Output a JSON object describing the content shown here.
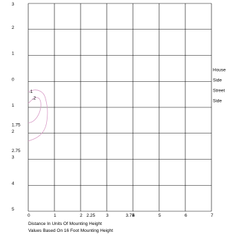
{
  "chart_data": {
    "type": "line",
    "title": "",
    "xlabel": "Distance In Units Of Mounting Height",
    "subtitle": "Values Based On 16 Foot Mounting Height",
    "xlim": [
      0,
      7
    ],
    "ylim": [
      -3,
      5
    ],
    "y_inverted": true,
    "grid": true,
    "x_major_ticks": [
      0,
      1,
      2,
      3,
      4,
      5,
      6,
      7
    ],
    "y_major_ticks": [
      -3,
      -2,
      -1,
      0,
      1,
      2,
      3,
      4,
      5
    ],
    "x_tick_labels": [
      {
        "value": 0,
        "label": "0"
      },
      {
        "value": 1,
        "label": "1"
      },
      {
        "value": 2,
        "label": "2"
      },
      {
        "value": 2.25,
        "label": "2.25"
      },
      {
        "value": 3,
        "label": "3"
      },
      {
        "value": 3.75,
        "label": "3.75"
      },
      {
        "value": 4,
        "label": "4"
      },
      {
        "value": 5,
        "label": "5"
      },
      {
        "value": 6,
        "label": "6"
      },
      {
        "value": 7,
        "label": "7"
      }
    ],
    "y_tick_labels": [
      {
        "value": -3,
        "label": "3"
      },
      {
        "value": -2,
        "label": "2"
      },
      {
        "value": -1,
        "label": "1"
      },
      {
        "value": 0,
        "label": "0"
      },
      {
        "value": 1,
        "label": "1"
      },
      {
        "value": 1.75,
        "label": "1.75"
      },
      {
        "value": 2,
        "label": "2"
      },
      {
        "value": 2.75,
        "label": "2.75"
      },
      {
        "value": 3,
        "label": "3"
      },
      {
        "value": 4,
        "label": "4"
      },
      {
        "value": 5,
        "label": "5"
      }
    ],
    "side_labels": [
      {
        "text": "House",
        "y": -0.45
      },
      {
        "text": "Side",
        "y": -0.05
      },
      {
        "text": "Street",
        "y": 0.35
      },
      {
        "text": "Side",
        "y": 0.75
      }
    ],
    "series": [
      {
        "label": ".1",
        "color": "#d89ac6",
        "points": [
          [
            0,
            0.4
          ],
          [
            0.3,
            0.3
          ],
          [
            0.6,
            0.45
          ],
          [
            0.7,
            0.8
          ],
          [
            0.75,
            1.2
          ],
          [
            0.68,
            1.8
          ],
          [
            0.4,
            2.15
          ],
          [
            0,
            2.3
          ]
        ]
      },
      {
        "label": ".2",
        "color": "#d89ac6",
        "points": [
          [
            0,
            0.85
          ],
          [
            0.25,
            0.6
          ],
          [
            0.45,
            0.65
          ],
          [
            0.5,
            0.95
          ],
          [
            0.4,
            1.3
          ],
          [
            0.2,
            1.55
          ],
          [
            0,
            1.6
          ]
        ]
      }
    ],
    "contour_labels": [
      {
        "text": ".1",
        "x": 0.03,
        "y": 0.45
      },
      {
        "text": ".2",
        "x": 0.15,
        "y": 0.7
      }
    ]
  }
}
